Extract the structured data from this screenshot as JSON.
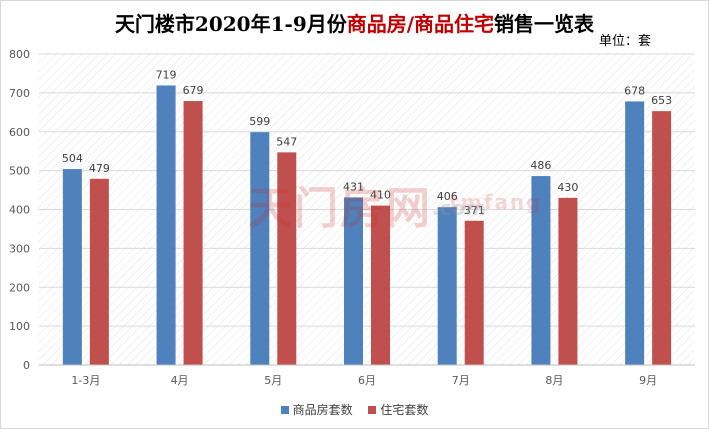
{
  "title": {
    "prefix": "天门楼市2020年1-9月份",
    "highlight": "商品房/商品住宅",
    "suffix": "销售一览表"
  },
  "unit_label": "单位：套",
  "watermark": {
    "main": "天门房网",
    "sub": "tmfang",
    "domain": ".com"
  },
  "colors": {
    "series1": "#4f81bd",
    "series2": "#c0504d",
    "grid": "#d9d9d9",
    "hatch": "#e3e3e3"
  },
  "chart_data": {
    "type": "bar",
    "categories": [
      "1-3月",
      "4月",
      "5月",
      "6月",
      "7月",
      "8月",
      "9月"
    ],
    "series": [
      {
        "name": "商品房套数",
        "values": [
          504,
          719,
          599,
          431,
          406,
          486,
          678
        ]
      },
      {
        "name": "住宅套数",
        "values": [
          479,
          679,
          547,
          410,
          371,
          430,
          653
        ]
      }
    ],
    "ylim": [
      0,
      800
    ],
    "yticks": [
      0,
      100,
      200,
      300,
      400,
      500,
      600,
      700,
      800
    ],
    "grid": true,
    "data_labels": true,
    "legend_position": "bottom"
  }
}
